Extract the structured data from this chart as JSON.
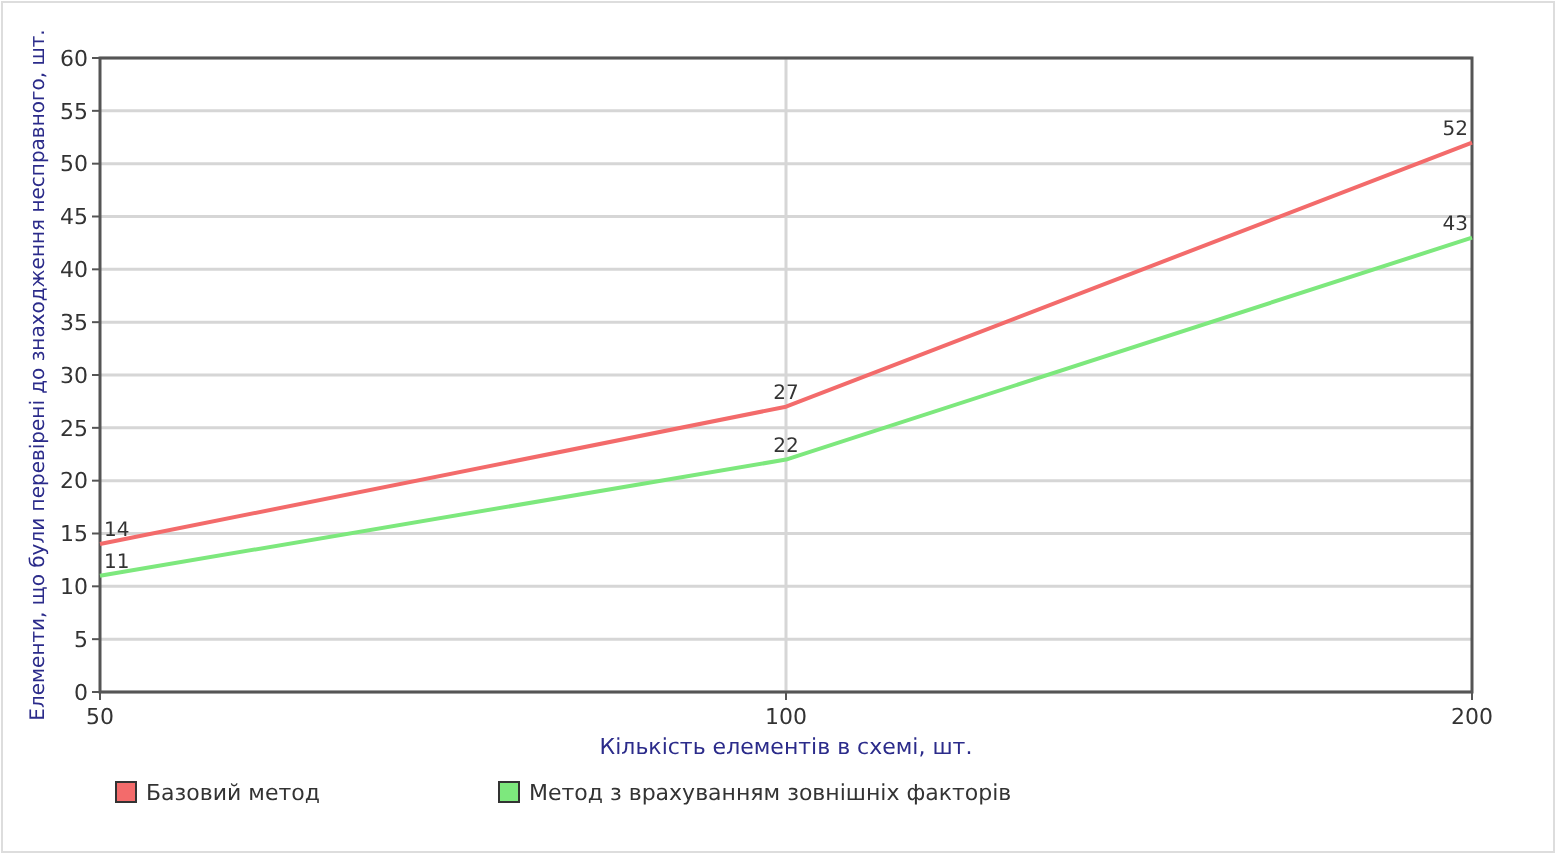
{
  "chart_data": {
    "type": "line",
    "xlabel": "Кількість елементів в схемі, шт.",
    "ylabel": "Елементи, що були перевірені до знаходження несправного, шт.",
    "x": [
      50,
      100,
      200
    ],
    "series": [
      {
        "name": "Базовий метод",
        "color": "#f36b6b",
        "values": [
          14,
          27,
          52
        ]
      },
      {
        "name": "Метод з врахуванням зовнішніх факторів",
        "color": "#7de87d",
        "values": [
          11,
          22,
          43
        ]
      }
    ],
    "xlim": [
      50,
      200
    ],
    "xticks": [
      50,
      100,
      200
    ],
    "log": "x",
    "ylim": [
      0,
      60
    ],
    "yticks": [
      0,
      5,
      10,
      15,
      20,
      25,
      30,
      35,
      40,
      45,
      50,
      55,
      60
    ],
    "grid": "y",
    "ref_lines": [
      {
        "axis": "x",
        "value": 100,
        "color": "#d6d6d6"
      }
    ],
    "legend": "bottom",
    "data_labels": true,
    "marker": "none",
    "line_style": "solid"
  }
}
